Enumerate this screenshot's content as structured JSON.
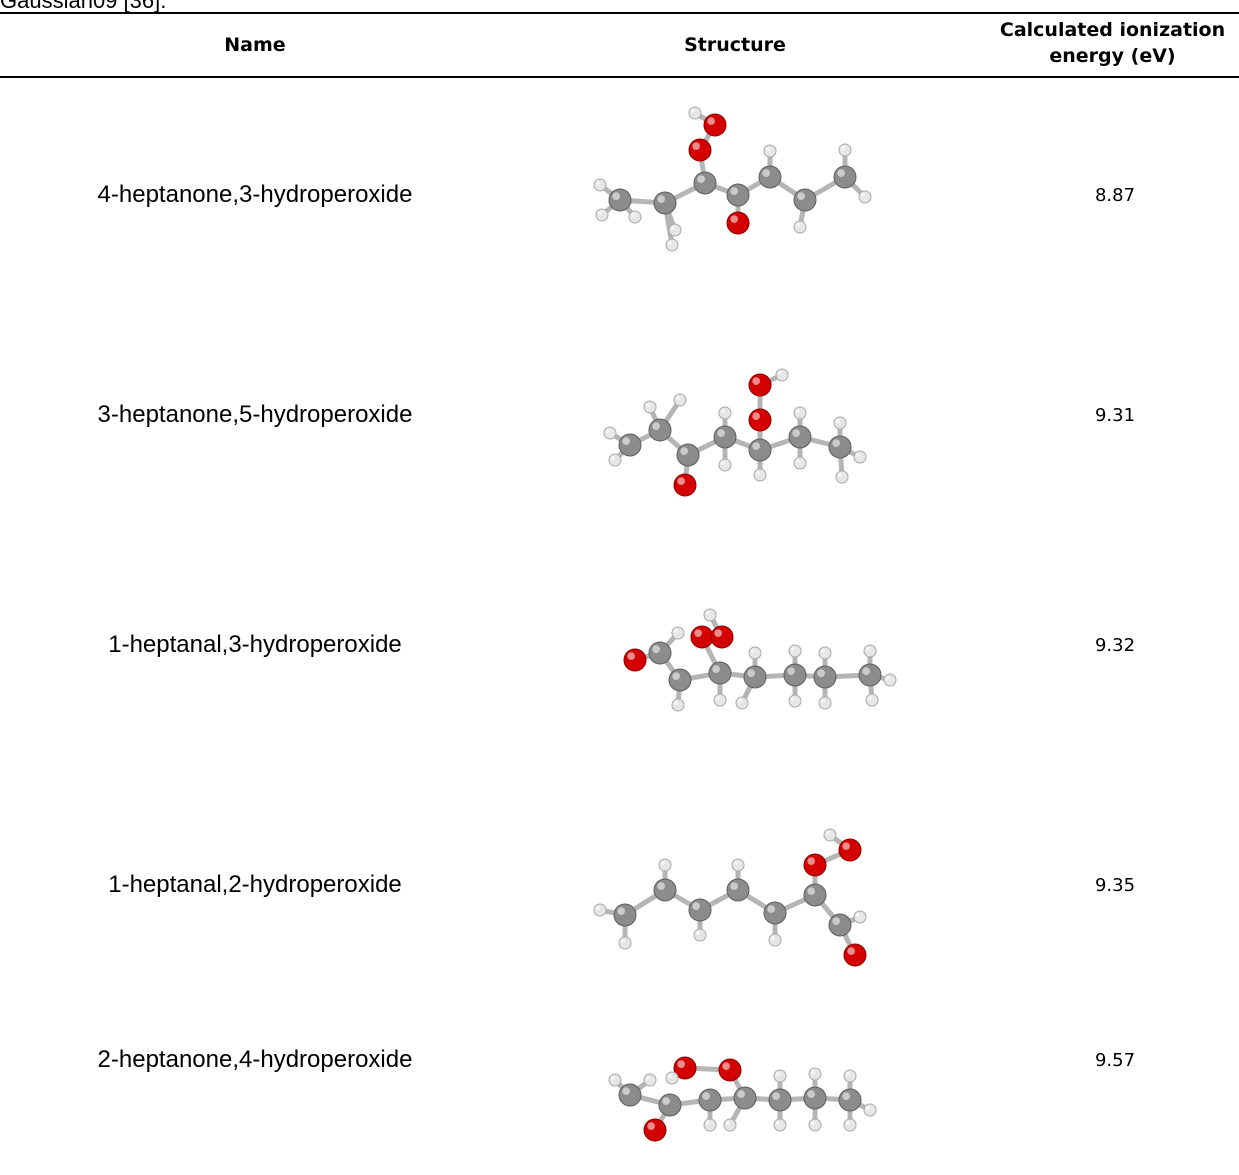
{
  "caption_fragment": "Gaussian09 [36].",
  "table": {
    "headers": {
      "name": "Name",
      "structure": "Structure",
      "ie_line1": "Calculated ionization",
      "ie_line2": "energy (eV)"
    },
    "rows": [
      {
        "name": "4-heptanone,3-hydroperoxide",
        "ionization_energy": "8.87",
        "structure": "ball-and-stick-molecule-image"
      },
      {
        "name": "3-heptanone,5-hydroperoxide",
        "ionization_energy": "9.31",
        "structure": "ball-and-stick-molecule-image"
      },
      {
        "name": "1-heptanal,3-hydroperoxide",
        "ionization_energy": "9.32",
        "structure": "ball-and-stick-molecule-image"
      },
      {
        "name": "1-heptanal,2-hydroperoxide",
        "ionization_energy": "9.35",
        "structure": "ball-and-stick-molecule-image"
      },
      {
        "name": "2-heptanone,4-hydroperoxide",
        "ionization_energy": "9.57",
        "structure": "ball-and-stick-molecule-image"
      }
    ]
  },
  "atom_colors": {
    "carbon": "#8c8c8c",
    "oxygen": "#d40000",
    "hydrogen": "#e6e6e6",
    "bond": "#b5b5b5"
  }
}
